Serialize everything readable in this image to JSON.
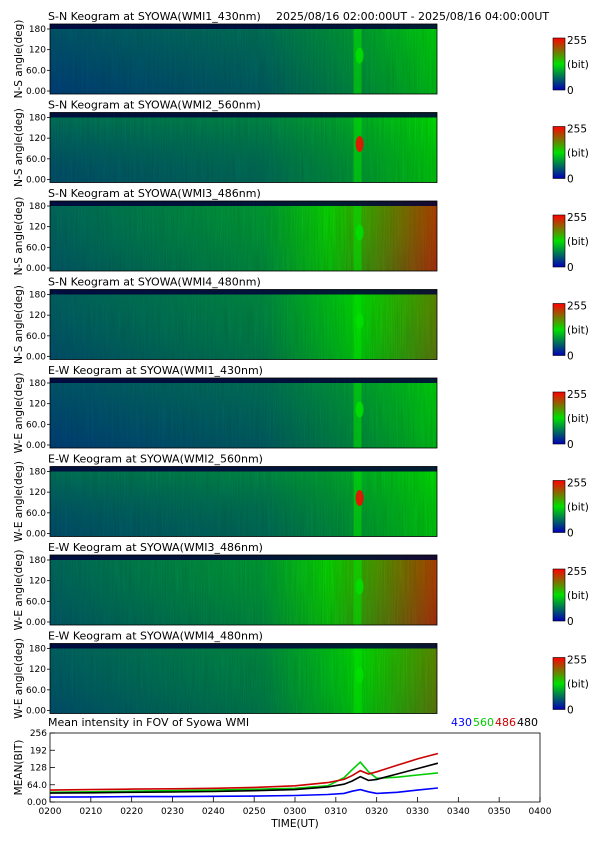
{
  "header": {
    "time_range": "2025/08/16 02:00:00UT - 2025/08/16 04:00:00UT"
  },
  "colors": {
    "low": "#0000b4",
    "mid": "#00e000",
    "high": "#ff0000",
    "line_430": "#0000ff",
    "line_560": "#00cc00",
    "line_486": "#cc0000",
    "line_480": "#000000"
  },
  "chart_data": [
    {
      "type": "heatmap",
      "id": "p1",
      "title": "S-N Keogram at SYOWA(WMI1_430nm)",
      "ylabel": "N-S angle(deg)",
      "yticks": [
        "180",
        "120",
        "60.0",
        "0.00"
      ],
      "ylim": [
        0,
        180
      ],
      "colorbar": {
        "min": "0",
        "max": "255",
        "unit": "(bit)"
      },
      "base": 0.16,
      "end": 0.42,
      "gain": 1.0,
      "rise": 0.05,
      "emission_fill": 0.0,
      "noise": 0.04
    },
    {
      "type": "heatmap",
      "id": "p2",
      "title": "S-N Keogram at SYOWA(WMI2_560nm)",
      "ylabel": "N-S angle(deg)",
      "yticks": [
        "180",
        "120",
        "60.0",
        "0.00"
      ],
      "ylim": [
        0,
        180
      ],
      "colorbar": {
        "min": "0",
        "max": "255",
        "unit": "(bit)"
      },
      "base": 0.2,
      "end": 0.45,
      "gain": 1.9,
      "rise": 0.05,
      "emission_fill": 0.0,
      "noise": 0.04
    },
    {
      "type": "heatmap",
      "id": "p3",
      "title": "S-N Keogram at SYOWA(WMI3_486nm)",
      "ylabel": "N-S angle(deg)",
      "yticks": [
        "180",
        "120",
        "60.0",
        "0.00"
      ],
      "ylim": [
        0,
        180
      ],
      "colorbar": {
        "min": "0",
        "max": "255",
        "unit": "(bit)"
      },
      "base": 0.22,
      "end": 0.68,
      "gain": 0.7,
      "rise": 0.2,
      "emission_fill": 0.0,
      "noise": 0.04
    },
    {
      "type": "heatmap",
      "id": "p4",
      "title": "S-N Keogram at SYOWA(WMI4_480nm)",
      "ylabel": "N-S angle(deg)",
      "yticks": [
        "180",
        "120",
        "60.0",
        "0.00"
      ],
      "ylim": [
        0,
        180
      ],
      "colorbar": {
        "min": "0",
        "max": "255",
        "unit": "(bit)"
      },
      "base": 0.2,
      "end": 0.58,
      "gain": 0.7,
      "rise": 0.12,
      "emission_fill": 0.0,
      "noise": 0.04
    },
    {
      "type": "heatmap",
      "id": "p5",
      "title": "E-W Keogram at SYOWA(WMI1_430nm)",
      "ylabel": "W-E angle(deg)",
      "yticks": [
        "180",
        "120",
        "60.0",
        "0.00"
      ],
      "ylim": [
        0,
        180
      ],
      "colorbar": {
        "min": "0",
        "max": "255",
        "unit": "(bit)"
      },
      "base": 0.16,
      "end": 0.42,
      "gain": 1.0,
      "rise": 0.05,
      "emission_fill": 0.0,
      "noise": 0.04
    },
    {
      "type": "heatmap",
      "id": "p6",
      "title": "E-W Keogram at SYOWA(WMI2_560nm)",
      "ylabel": "W-E angle(deg)",
      "yticks": [
        "180",
        "120",
        "60.0",
        "0.00"
      ],
      "ylim": [
        0,
        180
      ],
      "colorbar": {
        "min": "0",
        "max": "255",
        "unit": "(bit)"
      },
      "base": 0.2,
      "end": 0.45,
      "gain": 1.9,
      "rise": 0.05,
      "emission_fill": 0.0,
      "noise": 0.04
    },
    {
      "type": "heatmap",
      "id": "p7",
      "title": "E-W Keogram at SYOWA(WMI3_486nm)",
      "ylabel": "W-E angle(deg)",
      "yticks": [
        "180",
        "120",
        "60.0",
        "0.00"
      ],
      "ylim": [
        0,
        180
      ],
      "colorbar": {
        "min": "0",
        "max": "255",
        "unit": "(bit)"
      },
      "base": 0.22,
      "end": 0.68,
      "gain": 0.7,
      "rise": 0.2,
      "emission_fill": 0.0,
      "noise": 0.04
    },
    {
      "type": "heatmap",
      "id": "p8",
      "title": "E-W Keogram at SYOWA(WMI4_480nm)",
      "ylabel": "W-E angle(deg)",
      "yticks": [
        "180",
        "120",
        "60.0",
        "0.00"
      ],
      "ylim": [
        0,
        180
      ],
      "colorbar": {
        "min": "0",
        "max": "255",
        "unit": "(bit)"
      },
      "base": 0.2,
      "end": 0.58,
      "gain": 0.7,
      "rise": 0.12,
      "emission_fill": 0.0,
      "noise": 0.04
    },
    {
      "type": "line",
      "id": "mean",
      "title": "Mean intensity in FOV of Syowa WMI",
      "ylabel": "MEAN(BIT)",
      "xlabel": "TIME(UT)",
      "xlim": [
        0,
        120
      ],
      "ylim": [
        0,
        256
      ],
      "yticks": [
        {
          "v": 256,
          "label": "256"
        },
        {
          "v": 192,
          "label": "192"
        },
        {
          "v": 128,
          "label": "128"
        },
        {
          "v": 64,
          "label": "64.0"
        },
        {
          "v": 0,
          "label": "0.00"
        }
      ],
      "xticks": [
        {
          "v": 0,
          "label": "0200"
        },
        {
          "v": 10,
          "label": "0210"
        },
        {
          "v": 20,
          "label": "0220"
        },
        {
          "v": 30,
          "label": "0230"
        },
        {
          "v": 40,
          "label": "0240"
        },
        {
          "v": 50,
          "label": "0250"
        },
        {
          "v": 60,
          "label": "0300"
        },
        {
          "v": 70,
          "label": "0310"
        },
        {
          "v": 80,
          "label": "0320"
        },
        {
          "v": 90,
          "label": "0330"
        },
        {
          "v": 100,
          "label": "0340"
        },
        {
          "v": 110,
          "label": "0350"
        },
        {
          "v": 120,
          "label": "0400"
        }
      ],
      "series": [
        {
          "name": "430",
          "color": "#0000ff",
          "x": [
            0,
            10,
            20,
            30,
            40,
            50,
            60,
            68,
            72,
            74,
            76,
            78,
            80,
            85,
            90,
            95
          ],
          "y": [
            18,
            19,
            20,
            20,
            21,
            22,
            24,
            28,
            32,
            40,
            46,
            38,
            32,
            36,
            44,
            52
          ]
        },
        {
          "name": "560",
          "color": "#00cc00",
          "x": [
            0,
            10,
            20,
            30,
            40,
            50,
            60,
            68,
            72,
            74,
            76,
            78,
            80,
            85,
            90,
            95
          ],
          "y": [
            36,
            38,
            40,
            42,
            44,
            47,
            51,
            60,
            90,
            120,
            148,
            112,
            88,
            92,
            100,
            108
          ]
        },
        {
          "name": "486",
          "color": "#cc0000",
          "x": [
            0,
            10,
            20,
            30,
            40,
            50,
            60,
            68,
            72,
            74,
            76,
            78,
            80,
            85,
            90,
            95
          ],
          "y": [
            44,
            46,
            48,
            49,
            51,
            54,
            60,
            72,
            84,
            98,
            116,
            104,
            112,
            136,
            160,
            180
          ]
        },
        {
          "name": "480",
          "color": "#000000",
          "x": [
            0,
            10,
            20,
            30,
            40,
            50,
            60,
            68,
            72,
            74,
            76,
            78,
            80,
            85,
            90,
            95
          ],
          "y": [
            33,
            34,
            36,
            37,
            39,
            42,
            46,
            56,
            66,
            78,
            94,
            80,
            84,
            104,
            124,
            144
          ]
        }
      ]
    }
  ]
}
